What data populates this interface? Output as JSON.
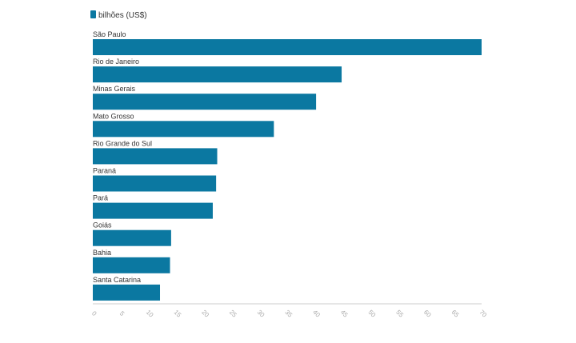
{
  "chart_data": {
    "type": "bar",
    "orientation": "horizontal",
    "categories": [
      "São Paulo",
      "Rio de Janeiro",
      "Minas Gerais",
      "Mato Grosso",
      "Rio Grande do Sul",
      "Paraná",
      "Pará",
      "Goiás",
      "Bahia",
      "Santa Catarina"
    ],
    "series": [
      {
        "name": "bilhões (US$)",
        "values": [
          70.0,
          44.8,
          40.2,
          32.6,
          22.4,
          22.2,
          21.6,
          14.1,
          13.9,
          12.1
        ]
      }
    ],
    "xlim": [
      0,
      70
    ],
    "ticks": [
      "0",
      "5",
      "10",
      "15",
      "20",
      "25",
      "30",
      "35",
      "40",
      "45",
      "50",
      "55",
      "60",
      "65",
      "70"
    ],
    "legend_position": "top-left",
    "bar_color": "#0b78a1",
    "grid": false
  }
}
